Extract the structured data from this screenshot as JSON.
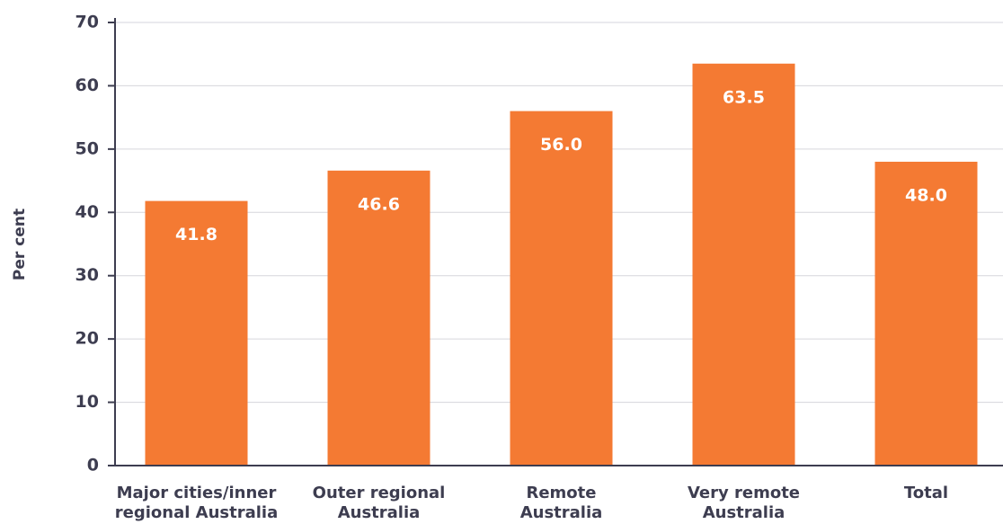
{
  "chart_data": {
    "type": "bar",
    "y_label": "Per cent",
    "categories": [
      "Major cities/inner\nregional Australia",
      "Outer regional\nAustralia",
      "Remote\nAustralia",
      "Very remote\nAustralia",
      "Total"
    ],
    "values": [
      41.8,
      46.6,
      56.0,
      63.5,
      48.0
    ],
    "value_labels": [
      "41.8",
      "46.6",
      "56.0",
      "63.5",
      "48.0"
    ],
    "color": "#f47a33",
    "ylim": [
      0,
      70
    ],
    "yticks": [
      0,
      10,
      20,
      30,
      40,
      50,
      60,
      70
    ],
    "grid": true
  }
}
